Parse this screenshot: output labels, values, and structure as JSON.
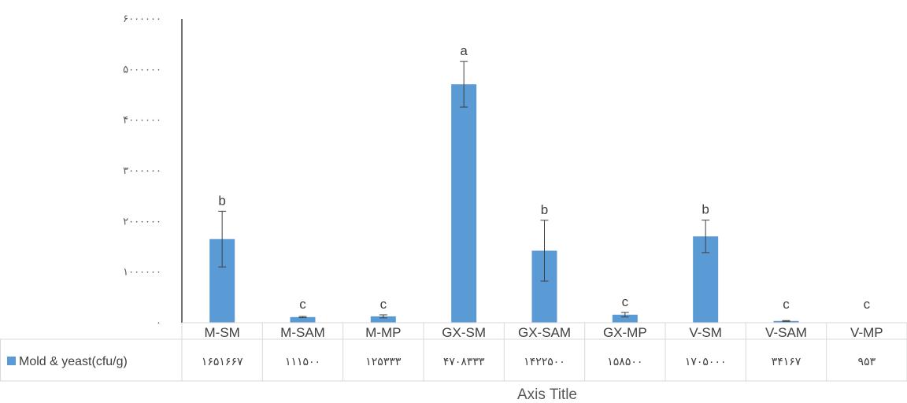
{
  "chart_data": {
    "type": "bar",
    "categories": [
      "M-SM",
      "M-SAM",
      "M-MP",
      "GX-SM",
      "GX-SAM",
      "GX-MP",
      "V-SM",
      "V-SAM",
      "V-MP"
    ],
    "series": [
      {
        "name": "Mold & yeast(cfu/g)",
        "values": [
          1651667,
          111500,
          125333,
          4708333,
          1422500,
          158500,
          1705000,
          34167,
          953
        ],
        "table_labels": [
          "۱۶۵۱۶۶۷",
          "۱۱۱۵۰۰",
          "۱۲۵۳۳۳",
          "۴۷۰۸۳۳۳",
          "۱۴۲۲۵۰۰",
          "۱۵۸۵۰۰",
          "۱۷۰۵۰۰۰",
          "۳۴۱۶۷",
          "۹۵۳"
        ],
        "error": [
          550000,
          12000,
          30000,
          450000,
          600000,
          45000,
          320000,
          8000,
          0
        ],
        "significance": [
          "b",
          "c",
          "c",
          "a",
          "b",
          "c",
          "b",
          "c",
          "c"
        ],
        "color": "#5b9bd5"
      }
    ],
    "ylim": [
      0,
      6000000
    ],
    "yticks": [
      0,
      1000000,
      2000000,
      3000000,
      4000000,
      5000000,
      6000000
    ],
    "ytick_labels": [
      "۰",
      "۱۰۰۰۰۰۰",
      "۲۰۰۰۰۰۰",
      "۳۰۰۰۰۰۰",
      "۴۰۰۰۰۰۰",
      "۵۰۰۰۰۰۰",
      "۶۰۰۰۰۰۰"
    ],
    "xlabel": "Axis Title",
    "grid": false,
    "legend": "data-table",
    "colors": {
      "bar": "#5b9bd5",
      "axis": "#404040",
      "table_border": "#d9d9d9"
    }
  }
}
